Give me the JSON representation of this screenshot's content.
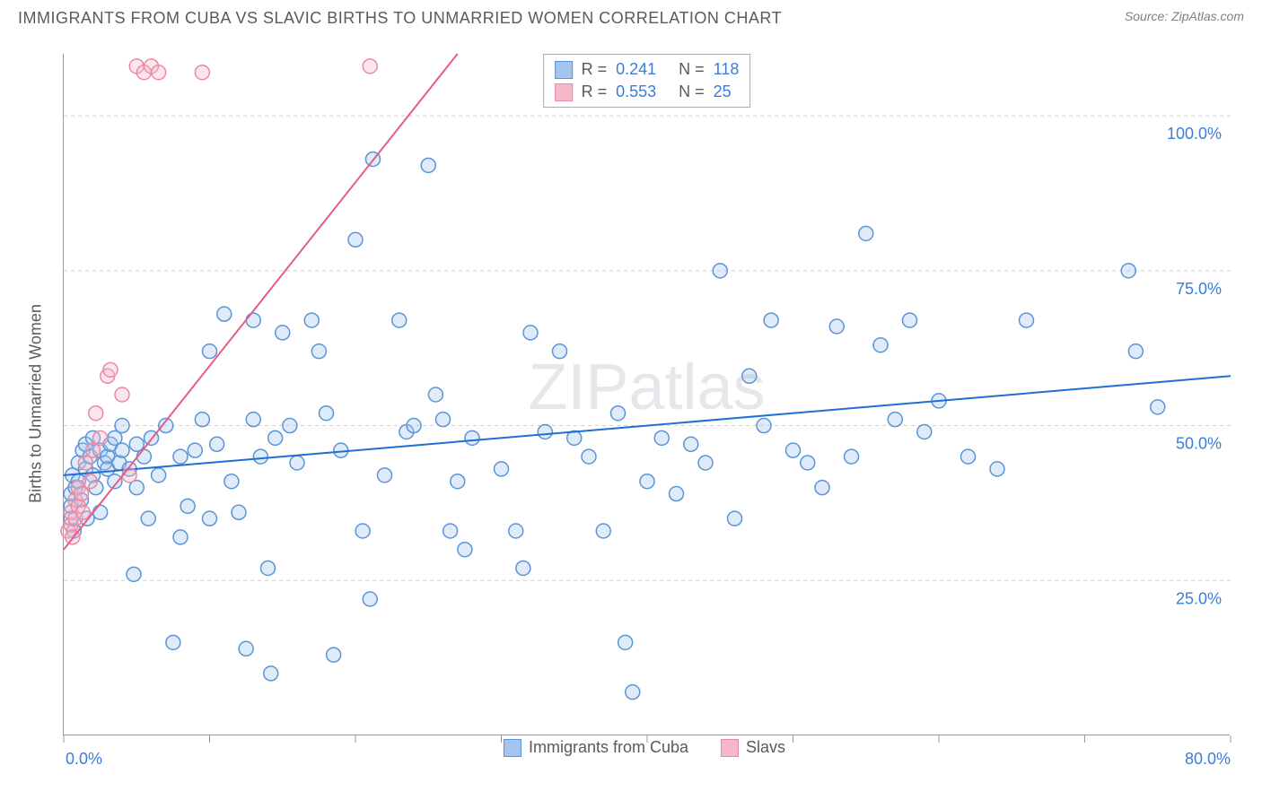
{
  "header": {
    "title": "IMMIGRANTS FROM CUBA VS SLAVIC BIRTHS TO UNMARRIED WOMEN CORRELATION CHART",
    "source_prefix": "Source: ",
    "source_name": "ZipAtlas.com"
  },
  "chart": {
    "type": "scatter",
    "watermark": "ZIPatlas",
    "y_axis_label": "Births to Unmarried Women",
    "background_color": "#ffffff",
    "grid_color": "#d0d0d0",
    "axis_color": "#999999",
    "xlim": [
      0,
      80
    ],
    "ylim": [
      0,
      110
    ],
    "x_ticks": [
      0,
      10,
      20,
      30,
      40,
      50,
      60,
      70,
      80
    ],
    "x_tick_labels": {
      "0": "0.0%",
      "80": "80.0%"
    },
    "y_ticks": [
      25,
      50,
      75,
      100
    ],
    "y_tick_labels": {
      "25": "25.0%",
      "50": "50.0%",
      "75": "75.0%",
      "100": "100.0%"
    },
    "marker_radius": 8,
    "marker_stroke_width": 1.5,
    "marker_fill_opacity": 0.35,
    "trend_line_width": 2,
    "series": [
      {
        "name": "Immigrants from Cuba",
        "color_fill": "#a3c5ef",
        "color_stroke": "#5a94d6",
        "trend_color": "#1f6fd4",
        "R": "0.241",
        "N": "118",
        "trend": {
          "x1": 0,
          "y1": 42,
          "x2": 80,
          "y2": 58
        },
        "points": [
          [
            0.5,
            35
          ],
          [
            0.5,
            37
          ],
          [
            0.5,
            39
          ],
          [
            0.6,
            42
          ],
          [
            0.7,
            33
          ],
          [
            0.8,
            40
          ],
          [
            1,
            44
          ],
          [
            1,
            41
          ],
          [
            1.2,
            38
          ],
          [
            1.3,
            46
          ],
          [
            1.5,
            43
          ],
          [
            1.5,
            47
          ],
          [
            1.6,
            35
          ],
          [
            1.8,
            45
          ],
          [
            2,
            42
          ],
          [
            2,
            48
          ],
          [
            2.2,
            40
          ],
          [
            2.5,
            46
          ],
          [
            2.5,
            36
          ],
          [
            2.8,
            44
          ],
          [
            3,
            45
          ],
          [
            3,
            43
          ],
          [
            3.2,
            47
          ],
          [
            3.5,
            41
          ],
          [
            3.5,
            48
          ],
          [
            3.8,
            44
          ],
          [
            4,
            50
          ],
          [
            4,
            46
          ],
          [
            4.5,
            43
          ],
          [
            4.8,
            26
          ],
          [
            5,
            47
          ],
          [
            5,
            40
          ],
          [
            5.5,
            45
          ],
          [
            5.8,
            35
          ],
          [
            6,
            48
          ],
          [
            6.5,
            42
          ],
          [
            7,
            50
          ],
          [
            7.5,
            15
          ],
          [
            8,
            32
          ],
          [
            8,
            45
          ],
          [
            8.5,
            37
          ],
          [
            9,
            46
          ],
          [
            9.5,
            51
          ],
          [
            10,
            35
          ],
          [
            10,
            62
          ],
          [
            10.5,
            47
          ],
          [
            11,
            68
          ],
          [
            11.5,
            41
          ],
          [
            12,
            36
          ],
          [
            12.5,
            14
          ],
          [
            13,
            67
          ],
          [
            13,
            51
          ],
          [
            13.5,
            45
          ],
          [
            14,
            27
          ],
          [
            14.2,
            10
          ],
          [
            14.5,
            48
          ],
          [
            15,
            65
          ],
          [
            15.5,
            50
          ],
          [
            16,
            44
          ],
          [
            17,
            67
          ],
          [
            17.5,
            62
          ],
          [
            18,
            52
          ],
          [
            18.5,
            13
          ],
          [
            19,
            46
          ],
          [
            20,
            80
          ],
          [
            20.5,
            33
          ],
          [
            21,
            22
          ],
          [
            21.2,
            93
          ],
          [
            22,
            42
          ],
          [
            23,
            67
          ],
          [
            23.5,
            49
          ],
          [
            24,
            50
          ],
          [
            25,
            92
          ],
          [
            25.5,
            55
          ],
          [
            26,
            51
          ],
          [
            26.5,
            33
          ],
          [
            27,
            41
          ],
          [
            27.5,
            30
          ],
          [
            28,
            48
          ],
          [
            30,
            43
          ],
          [
            31,
            33
          ],
          [
            31.5,
            27
          ],
          [
            32,
            65
          ],
          [
            33,
            49
          ],
          [
            34,
            62
          ],
          [
            35,
            48
          ],
          [
            36,
            45
          ],
          [
            37,
            33
          ],
          [
            38,
            52
          ],
          [
            38.5,
            15
          ],
          [
            39,
            7
          ],
          [
            40,
            41
          ],
          [
            41,
            48
          ],
          [
            42,
            39
          ],
          [
            43,
            47
          ],
          [
            44,
            44
          ],
          [
            45,
            75
          ],
          [
            46,
            35
          ],
          [
            47,
            58
          ],
          [
            48,
            50
          ],
          [
            48.5,
            67
          ],
          [
            50,
            46
          ],
          [
            51,
            44
          ],
          [
            52,
            40
          ],
          [
            53,
            66
          ],
          [
            54,
            45
          ],
          [
            55,
            81
          ],
          [
            56,
            63
          ],
          [
            57,
            51
          ],
          [
            58,
            67
          ],
          [
            59,
            49
          ],
          [
            60,
            54
          ],
          [
            62,
            45
          ],
          [
            64,
            43
          ],
          [
            66,
            67
          ],
          [
            73,
            75
          ],
          [
            73.5,
            62
          ],
          [
            75,
            53
          ]
        ]
      },
      {
        "name": "Slavs",
        "color_fill": "#f5b8c8",
        "color_stroke": "#e88aa5",
        "trend_color": "#e65a8a",
        "R": "0.553",
        "N": "25",
        "trend": {
          "x1": 0,
          "y1": 30,
          "x2": 27,
          "y2": 110
        },
        "points": [
          [
            0.3,
            33
          ],
          [
            0.5,
            34
          ],
          [
            0.5,
            36
          ],
          [
            0.6,
            32
          ],
          [
            0.8,
            35
          ],
          [
            0.8,
            38
          ],
          [
            1,
            40
          ],
          [
            1,
            37
          ],
          [
            1.2,
            39
          ],
          [
            1.3,
            36
          ],
          [
            1.5,
            44
          ],
          [
            1.8,
            41
          ],
          [
            2,
            46
          ],
          [
            2.2,
            52
          ],
          [
            2.5,
            48
          ],
          [
            3,
            58
          ],
          [
            3.2,
            59
          ],
          [
            4,
            55
          ],
          [
            4.5,
            42
          ],
          [
            5,
            108
          ],
          [
            5.5,
            107
          ],
          [
            6,
            108
          ],
          [
            6.5,
            107
          ],
          [
            9.5,
            107
          ],
          [
            21,
            108
          ]
        ]
      }
    ],
    "legend_top": {
      "rows": [
        {
          "swatch_fill": "#a3c5ef",
          "swatch_stroke": "#5a94d6",
          "R_label": "R =",
          "R_val": "0.241",
          "N_label": "N =",
          "N_val": "118"
        },
        {
          "swatch_fill": "#f5b8c8",
          "swatch_stroke": "#e88aa5",
          "R_label": "R =",
          "R_val": "0.553",
          "N_label": "N =",
          "N_val": "25"
        }
      ]
    },
    "legend_bottom": {
      "items": [
        {
          "swatch_fill": "#a3c5ef",
          "swatch_stroke": "#5a94d6",
          "label": "Immigrants from Cuba"
        },
        {
          "swatch_fill": "#f5b8c8",
          "swatch_stroke": "#e88aa5",
          "label": "Slavs"
        }
      ]
    }
  }
}
